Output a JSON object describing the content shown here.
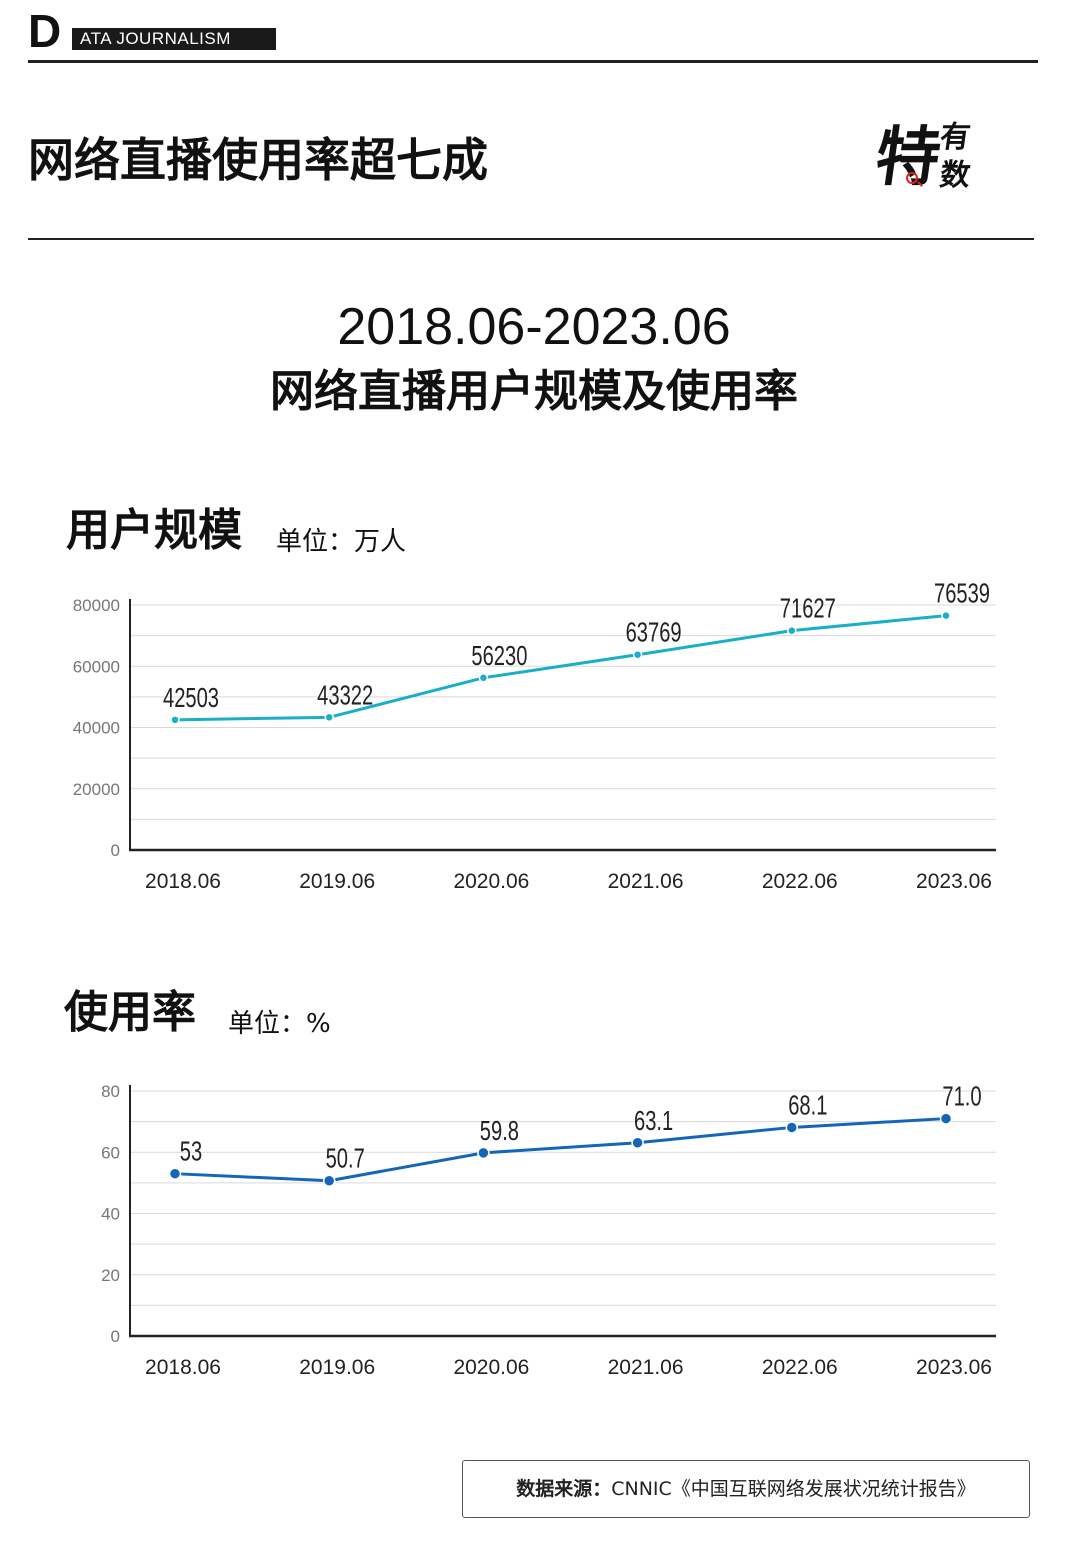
{
  "brand": {
    "letter": "D",
    "bar_text": "ATA JOURNALISM"
  },
  "headline": "网络直播使用率超七成",
  "logo": {
    "main": "特",
    "sub1": "有",
    "sub2": "数"
  },
  "subtitle": {
    "date_range": "2018.06-2023.06",
    "title": "网络直播用户规模及使用率"
  },
  "sections": {
    "scale": {
      "title": "用户规模",
      "unit": "单位：万人"
    },
    "rate": {
      "title": "使用率",
      "unit": "单位：%"
    }
  },
  "colors": {
    "scale_line": "#1aaec8",
    "rate_line": "#1565b8",
    "grid": "#d9d9d9",
    "axis": "#222222"
  },
  "chart_data": [
    {
      "type": "line",
      "categories": [
        "2018.06",
        "2019.06",
        "2020.06",
        "2021.06",
        "2022.06",
        "2023.06"
      ],
      "values": [
        42503,
        43322,
        56230,
        63769,
        71627,
        76539
      ],
      "value_labels": [
        "42503",
        "43322",
        "56230",
        "63769",
        "71627",
        "76539"
      ],
      "yticks": [
        0,
        20000,
        40000,
        60000,
        80000
      ],
      "ylim": [
        0,
        80000
      ],
      "grid": true
    },
    {
      "type": "line",
      "categories": [
        "2018.06",
        "2019.06",
        "2020.06",
        "2021.06",
        "2022.06",
        "2023.06"
      ],
      "values": [
        53,
        50.7,
        59.8,
        63.1,
        68.1,
        71.0
      ],
      "value_labels": [
        "53",
        "50.7",
        "59.8",
        "63.1",
        "68.1",
        "71.0"
      ],
      "yticks": [
        0,
        20,
        40,
        60,
        80
      ],
      "ylim": [
        0,
        80
      ],
      "grid": true
    }
  ],
  "source": {
    "label": "数据来源：",
    "text": "CNNIC《中国互联网络发展状况统计报告》"
  }
}
